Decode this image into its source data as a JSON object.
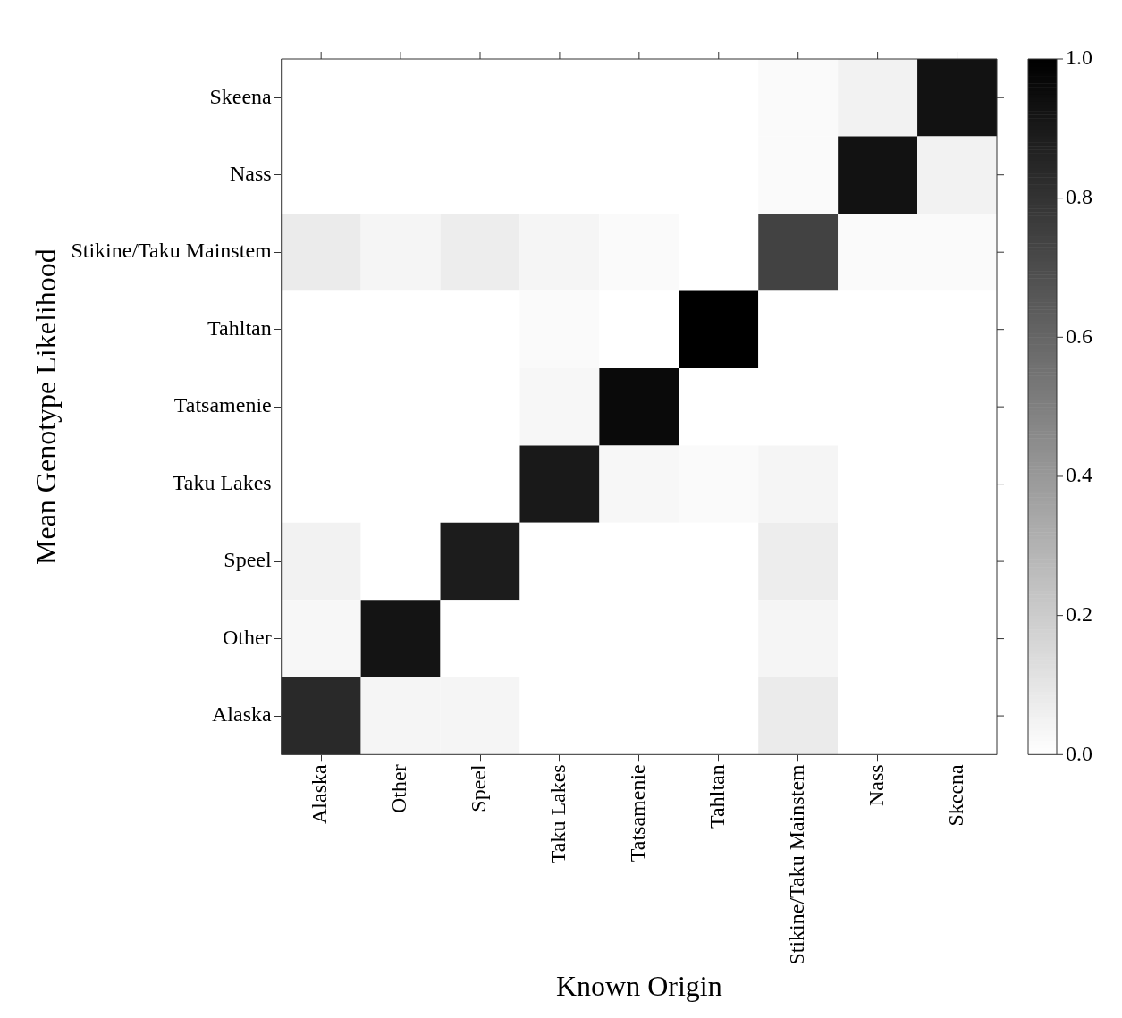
{
  "chart_data": {
    "type": "heatmap",
    "xlabel": "Known Origin",
    "ylabel": "Mean Genotype Likelihood",
    "categories": [
      "Alaska",
      "Other",
      "Speel",
      "Taku Lakes",
      "Tatsamenie",
      "Tahltan",
      "Stikine/Taku Mainstem",
      "Nass",
      "Skeena"
    ],
    "y_categories": [
      "Skeena",
      "Nass",
      "Stikine/Taku Mainstem",
      "Tahltan",
      "Tatsamenie",
      "Taku Lakes",
      "Speel",
      "Other",
      "Alaska"
    ],
    "cells": [
      [
        0,
        0,
        0,
        0,
        0,
        0,
        0.02,
        0.05,
        0.93
      ],
      [
        0,
        0,
        0,
        0,
        0,
        0,
        0.02,
        0.93,
        0.05
      ],
      [
        0.08,
        0.04,
        0.07,
        0.04,
        0.02,
        0,
        0.74,
        0.02,
        0.02
      ],
      [
        0,
        0,
        0,
        0.02,
        0,
        1.0,
        0,
        0,
        0
      ],
      [
        0,
        0,
        0,
        0.03,
        0.96,
        0,
        0,
        0,
        0
      ],
      [
        0,
        0,
        0,
        0.9,
        0.03,
        0.02,
        0.04,
        0,
        0
      ],
      [
        0.05,
        0,
        0.89,
        0,
        0,
        0,
        0.07,
        0,
        0
      ],
      [
        0.03,
        0.92,
        0,
        0,
        0,
        0,
        0.04,
        0,
        0
      ],
      [
        0.84,
        0.04,
        0.04,
        0,
        0,
        0,
        0.08,
        0,
        0
      ]
    ],
    "clim": [
      0,
      1
    ],
    "cticks": [
      {
        "value": 0,
        "label": "0.0"
      },
      {
        "value": 0.2,
        "label": "0.2"
      },
      {
        "value": 0.4,
        "label": "0.4"
      },
      {
        "value": 0.6,
        "label": "0.6"
      },
      {
        "value": 0.8,
        "label": "0.8"
      },
      {
        "value": 1,
        "label": "1.0"
      }
    ]
  }
}
